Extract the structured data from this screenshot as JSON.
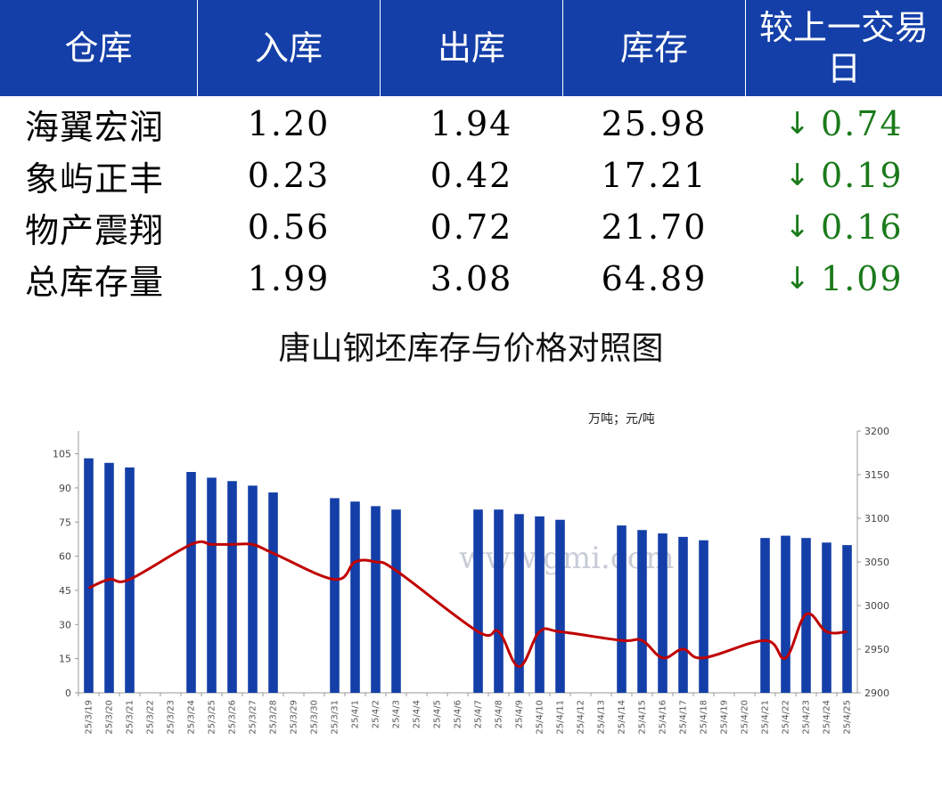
{
  "table": {
    "headers": [
      "仓库",
      "入库",
      "出库",
      "库存",
      "较上一交易日"
    ],
    "rows": [
      {
        "name": "海翼宏润",
        "in": "1.20",
        "out": "1.94",
        "stock": "25.98",
        "arrow": "↓",
        "change": "0.74"
      },
      {
        "name": "象屿正丰",
        "in": "0.23",
        "out": "0.42",
        "stock": "17.21",
        "arrow": "↓",
        "change": "0.19"
      },
      {
        "name": "物产震翔",
        "in": "0.56",
        "out": "0.72",
        "stock": "21.70",
        "arrow": "↓",
        "change": "0.16"
      },
      {
        "name": "总库存量",
        "in": "1.99",
        "out": "3.08",
        "stock": "64.89",
        "arrow": "↓",
        "change": "1.09"
      }
    ],
    "colors": {
      "header_bg": "#143fa8",
      "down": "#1a7a1a"
    }
  },
  "watermark": "www.gmi.com",
  "chart_data": {
    "type": "bar+line",
    "title": "唐山钢坯库存与价格对照图",
    "unit_label": "万吨；元/吨",
    "colors": {
      "bar": "#143fa8",
      "line": "#c00000"
    },
    "categories": [
      "25/3/19",
      "25/3/20",
      "25/3/21",
      "25/3/22",
      "25/3/23",
      "25/3/24",
      "25/3/25",
      "25/3/26",
      "25/3/27",
      "25/3/28",
      "25/3/29",
      "25/3/30",
      "25/3/31",
      "25/4/1",
      "25/4/2",
      "25/4/3",
      "25/4/4",
      "25/4/5",
      "25/4/6",
      "25/4/7",
      "25/4/8",
      "25/4/9",
      "25/4/10",
      "25/4/11",
      "25/4/12",
      "25/4/13",
      "25/4/14",
      "25/4/15",
      "25/4/16",
      "25/4/17",
      "25/4/18",
      "25/4/19",
      "25/4/20",
      "25/4/21",
      "25/4/22",
      "25/4/23",
      "25/4/24",
      "25/4/25"
    ],
    "left_axis": {
      "ylim": [
        0,
        115
      ],
      "ticks": [
        0,
        15,
        30,
        45,
        60,
        75,
        90,
        105
      ]
    },
    "right_axis": {
      "ylim": [
        2900,
        3200
      ],
      "ticks": [
        2900,
        2950,
        3000,
        3050,
        3100,
        3150,
        3200
      ]
    },
    "series": [
      {
        "kind": "bar",
        "axis": "left",
        "values": [
          103,
          101,
          99,
          null,
          null,
          97,
          94.5,
          93,
          91,
          88,
          null,
          null,
          85.5,
          84,
          82,
          80.5,
          null,
          null,
          null,
          80.5,
          80.5,
          78.5,
          77.5,
          76,
          null,
          null,
          73.5,
          71.5,
          70,
          68.5,
          67,
          null,
          null,
          68,
          69,
          68,
          66,
          64.89
        ]
      },
      {
        "kind": "line",
        "axis": "right",
        "values": [
          3020,
          3030,
          3030,
          null,
          null,
          3070,
          3070,
          3070,
          3070,
          3060,
          null,
          null,
          3030,
          3050,
          3050,
          3040,
          null,
          null,
          null,
          2970,
          2970,
          2930,
          2970,
          2970,
          null,
          null,
          2960,
          2960,
          2940,
          2950,
          2940,
          null,
          null,
          2960,
          2940,
          2990,
          2970,
          2970
        ]
      }
    ]
  }
}
